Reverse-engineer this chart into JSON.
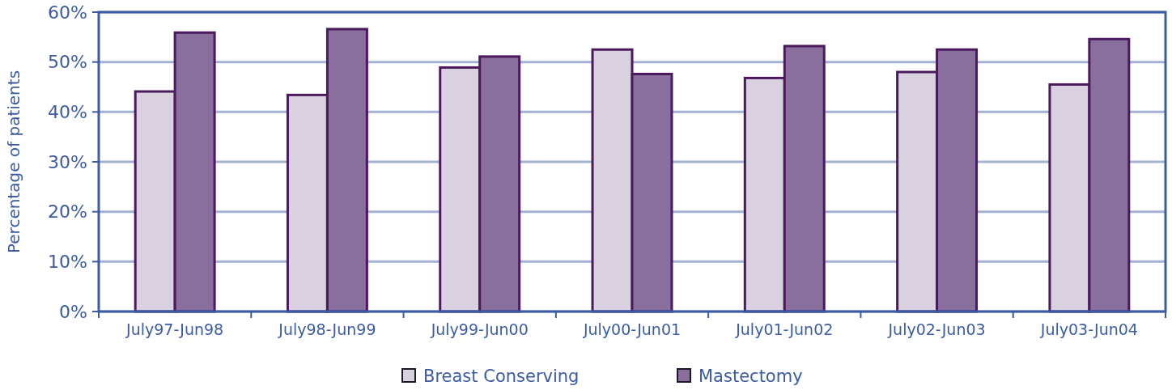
{
  "chart_data": {
    "type": "bar",
    "ylabel": "Percentage of patients",
    "categories": [
      "July97-Jun98",
      "July98-Jun99",
      "July99-Jun00",
      "July00-Jun01",
      "July01-Jun02",
      "July02-Jun03",
      "July03-Jun04"
    ],
    "series": [
      {
        "name": "Breast Conserving",
        "color": "#d9d0e0",
        "values": [
          44.1,
          43.4,
          48.9,
          52.5,
          46.8,
          48.0,
          45.5
        ]
      },
      {
        "name": "Mastectomy",
        "color": "#8a6f9e",
        "values": [
          55.9,
          56.6,
          51.1,
          47.6,
          53.2,
          52.5,
          54.6
        ]
      }
    ],
    "ylim": [
      0,
      60
    ],
    "yticks": [
      {
        "value": 0,
        "label": "0%"
      },
      {
        "value": 10,
        "label": "10%"
      },
      {
        "value": 20,
        "label": "20%"
      },
      {
        "value": 30,
        "label": "30%"
      },
      {
        "value": 40,
        "label": "40%"
      },
      {
        "value": 50,
        "label": "50%"
      },
      {
        "value": 60,
        "label": "60%"
      }
    ],
    "grid": "y",
    "legend": "bottom"
  }
}
